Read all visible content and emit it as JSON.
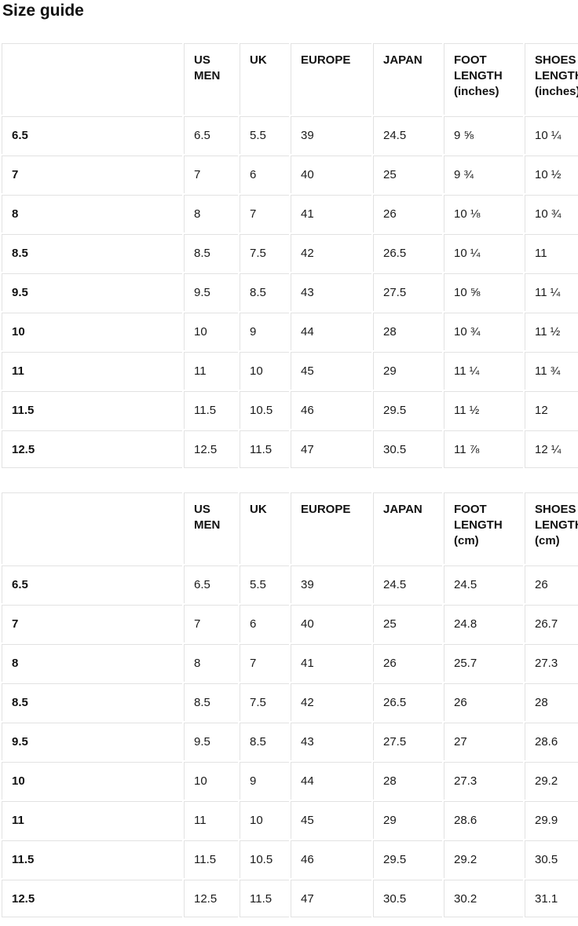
{
  "page": {
    "title": "Size guide"
  },
  "tables": [
    {
      "id": "inches",
      "headers": [
        "",
        "US MEN",
        "UK",
        "EUROPE",
        "JAPAN",
        "FOOT LENGTH (inches)",
        "SHOES LENGTH (inches)"
      ],
      "rows": [
        {
          "size": "6.5",
          "cells": [
            "6.5",
            "5.5",
            "39",
            "24.5",
            "9 ⅝",
            "10 ¼"
          ]
        },
        {
          "size": "7",
          "cells": [
            "7",
            "6",
            "40",
            "25",
            "9 ¾",
            "10 ½"
          ]
        },
        {
          "size": "8",
          "cells": [
            "8",
            "7",
            "41",
            "26",
            "10 ⅛",
            "10 ¾"
          ]
        },
        {
          "size": "8.5",
          "cells": [
            "8.5",
            "7.5",
            "42",
            "26.5",
            "10 ¼",
            "11"
          ]
        },
        {
          "size": "9.5",
          "cells": [
            "9.5",
            "8.5",
            "43",
            "27.5",
            "10 ⅝",
            "11 ¼"
          ]
        },
        {
          "size": "10",
          "cells": [
            "10",
            "9",
            "44",
            "28",
            "10 ¾",
            "11 ½"
          ]
        },
        {
          "size": "11",
          "cells": [
            "11",
            "10",
            "45",
            "29",
            "11 ¼",
            "11 ¾"
          ]
        },
        {
          "size": "11.5",
          "cells": [
            "11.5",
            "10.5",
            "46",
            "29.5",
            "11 ½",
            "12"
          ]
        },
        {
          "size": "12.5",
          "cells": [
            "12.5",
            "11.5",
            "47",
            "30.5",
            "11 ⅞",
            "12 ¼"
          ]
        }
      ]
    },
    {
      "id": "cm",
      "headers": [
        "",
        "US MEN",
        "UK",
        "EUROPE",
        "JAPAN",
        "FOOT LENGTH (cm)",
        "SHOES LENGTH (cm)"
      ],
      "rows": [
        {
          "size": "6.5",
          "cells": [
            "6.5",
            "5.5",
            "39",
            "24.5",
            "24.5",
            "26"
          ]
        },
        {
          "size": "7",
          "cells": [
            "7",
            "6",
            "40",
            "25",
            "24.8",
            "26.7"
          ]
        },
        {
          "size": "8",
          "cells": [
            "8",
            "7",
            "41",
            "26",
            "25.7",
            "27.3"
          ]
        },
        {
          "size": "8.5",
          "cells": [
            "8.5",
            "7.5",
            "42",
            "26.5",
            "26",
            "28"
          ]
        },
        {
          "size": "9.5",
          "cells": [
            "9.5",
            "8.5",
            "43",
            "27.5",
            "27",
            "28.6"
          ]
        },
        {
          "size": "10",
          "cells": [
            "10",
            "9",
            "44",
            "28",
            "27.3",
            "29.2"
          ]
        },
        {
          "size": "11",
          "cells": [
            "11",
            "10",
            "45",
            "29",
            "28.6",
            "29.9"
          ]
        },
        {
          "size": "11.5",
          "cells": [
            "11.5",
            "10.5",
            "46",
            "29.5",
            "29.2",
            "30.5"
          ]
        },
        {
          "size": "12.5",
          "cells": [
            "12.5",
            "11.5",
            "47",
            "30.5",
            "30.2",
            "31.1"
          ]
        }
      ]
    }
  ]
}
